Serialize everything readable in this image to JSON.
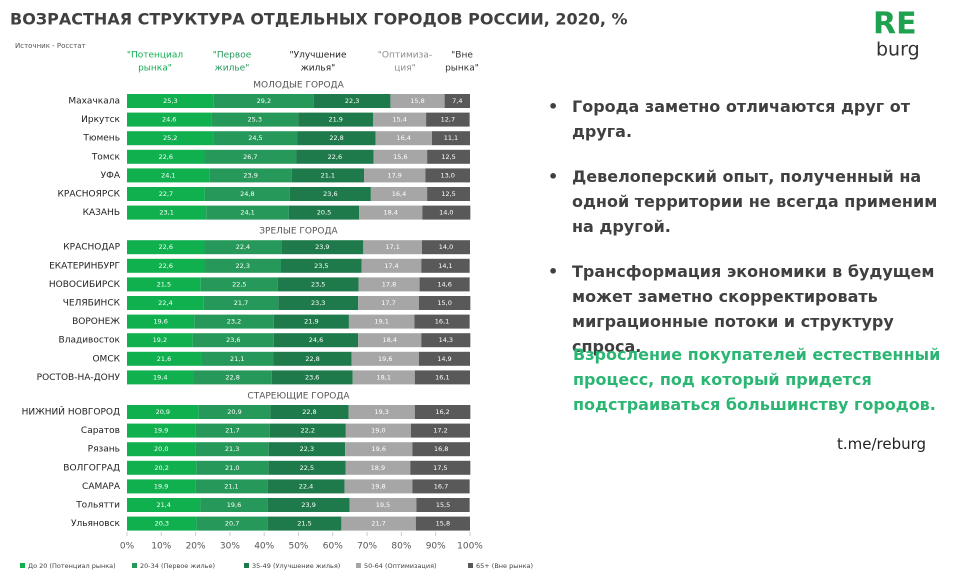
{
  "title": "ВОЗРАСТНАЯ СТРУКТУРА ОТДЕЛЬНЫХ ГОРОДОВ РОССИИ, 2020, %",
  "source": "Источник - Росстат",
  "logo": {
    "top": "RE",
    "bottom": "burg"
  },
  "chart_data": {
    "type": "bar",
    "orientation": "horizontal",
    "stacked": true,
    "series": [
      {
        "name": "До 20 (Потенциал рынка)",
        "color": "#10b04f"
      },
      {
        "name": "20-34 (Первое жилье)",
        "color": "#26995a"
      },
      {
        "name": "35-49 (Улучшение жилья)",
        "color": "#1f7a4b"
      },
      {
        "name": "50-64 (Оптимизация)",
        "color": "#a6a6a6"
      },
      {
        "name": "65+ (Вне рынка)",
        "color": "#595959"
      }
    ],
    "column_headers": [
      {
        "lines": [
          "\"Потенциал",
          "рынка\""
        ],
        "color": "#10b04f"
      },
      {
        "lines": [
          "\"Первое",
          "жилье\""
        ],
        "color": "#26995a"
      },
      {
        "lines": [
          "\"Улучшение",
          "жилья\""
        ],
        "color": "#222222"
      },
      {
        "lines": [
          "\"Оптимиза-",
          "ция\""
        ],
        "color": "#8c8c8c"
      },
      {
        "lines": [
          "\"Вне",
          "рынка\""
        ],
        "color": "#333333"
      }
    ],
    "groups": [
      {
        "label": "МОЛОДЫЕ ГОРОДА",
        "categories": [
          "Махачкала",
          "Иркутск",
          "Тюмень",
          "Томск",
          "УФА",
          "КРАСНОЯРСК",
          "КАЗАНЬ"
        ],
        "series": [
          {
            "values": [
              25.3,
              24.6,
              25.2,
              22.6,
              24.1,
              22.7,
              23.1
            ],
            "value_labels": [
              "25,3",
              "24,6",
              "25,2",
              "22,6",
              "24,1",
              "22,7",
              "23,1"
            ]
          },
          {
            "values": [
              29.2,
              25.3,
              24.5,
              26.7,
              23.9,
              24.8,
              24.1
            ],
            "value_labels": [
              "29,2",
              "25,3",
              "24,5",
              "26,7",
              "23,9",
              "24,8",
              "24,1"
            ]
          },
          {
            "values": [
              22.3,
              21.9,
              22.8,
              22.6,
              21.1,
              23.6,
              20.5
            ],
            "value_labels": [
              "22,3",
              "21,9",
              "22,8",
              "22,6",
              "21,1",
              "23,6",
              "20,5"
            ]
          },
          {
            "values": [
              15.8,
              15.4,
              16.4,
              15.6,
              17.9,
              16.4,
              18.4
            ],
            "value_labels": [
              "15,8",
              "15,4",
              "16,4",
              "15,6",
              "17,9",
              "16,4",
              "18,4"
            ]
          },
          {
            "values": [
              7.4,
              12.7,
              11.1,
              12.5,
              13.0,
              12.5,
              14.0
            ],
            "value_labels": [
              "7,4",
              "12,7",
              "11,1",
              "12,5",
              "13,0",
              "12,5",
              "14,0"
            ]
          }
        ]
      },
      {
        "label": "ЗРЕЛЫЕ ГОРОДА",
        "categories": [
          "КРАСНОДАР",
          "ЕКАТЕРИНБУРГ",
          "НОВОСИБИРСК",
          "ЧЕЛЯБИНСК",
          "ВОРОНЕЖ",
          "Владивосток",
          "ОМСК",
          "РОСТОВ-НА-ДОНУ"
        ],
        "series": [
          {
            "values": [
              22.6,
              22.6,
              21.5,
              22.4,
              19.6,
              19.2,
              21.6,
              19.4
            ],
            "value_labels": [
              "22,6",
              "22,6",
              "21,5",
              "22,4",
              "19,6",
              "19,2",
              "21,6",
              "19,4"
            ]
          },
          {
            "values": [
              22.4,
              22.3,
              22.5,
              21.7,
              23.2,
              23.6,
              21.1,
              22.8
            ],
            "value_labels": [
              "22,4",
              "22,3",
              "22,5",
              "21,7",
              "23,2",
              "23,6",
              "21,1",
              "22,8"
            ]
          },
          {
            "values": [
              23.9,
              23.5,
              23.5,
              23.3,
              21.9,
              24.6,
              22.8,
              23.6
            ],
            "value_labels": [
              "23,9",
              "23,5",
              "23,5",
              "23,3",
              "21,9",
              "24,6",
              "22,8",
              "23,6"
            ]
          },
          {
            "values": [
              17.1,
              17.4,
              17.8,
              17.7,
              19.1,
              18.4,
              19.6,
              18.1
            ],
            "value_labels": [
              "17,1",
              "17,4",
              "17,8",
              "17,7",
              "19,1",
              "18,4",
              "19,6",
              "18,1"
            ]
          },
          {
            "values": [
              14.0,
              14.1,
              14.6,
              15.0,
              16.1,
              14.3,
              14.9,
              16.1
            ],
            "value_labels": [
              "14,0",
              "14,1",
              "14,6",
              "15,0",
              "16,1",
              "14,3",
              "14,9",
              "16,1"
            ]
          }
        ]
      },
      {
        "label": "СТАРЕЮЩИЕ ГОРОДА",
        "categories": [
          "НИЖНИЙ НОВГОРОД",
          "Саратов",
          "Рязань",
          "ВОЛГОГРАД",
          "САМАРА",
          "Тольятти",
          "Ульяновск"
        ],
        "series": [
          {
            "values": [
              20.9,
              19.9,
              20.0,
              20.2,
              19.9,
              21.4,
              20.3
            ],
            "value_labels": [
              "20,9",
              "19,9",
              "20,0",
              "20,2",
              "19,9",
              "21,4",
              "20,3"
            ]
          },
          {
            "values": [
              20.9,
              21.7,
              21.3,
              21.0,
              21.1,
              19.6,
              20.7
            ],
            "value_labels": [
              "20,9",
              "21,7",
              "21,3",
              "21,0",
              "21,1",
              "19,6",
              "20,7"
            ]
          },
          {
            "values": [
              22.8,
              22.2,
              22.3,
              22.5,
              22.4,
              23.9,
              21.5
            ],
            "value_labels": [
              "22,8",
              "22,2",
              "22,3",
              "22,5",
              "22,4",
              "23,9",
              "21,5"
            ]
          },
          {
            "values": [
              19.3,
              19.0,
              19.6,
              18.9,
              19.8,
              19.5,
              21.7
            ],
            "value_labels": [
              "19,3",
              "19,0",
              "19,6",
              "18,9",
              "19,8",
              "19,5",
              "21,7"
            ]
          },
          {
            "values": [
              16.2,
              17.2,
              16.8,
              17.5,
              16.7,
              15.5,
              15.8
            ],
            "value_labels": [
              "16,2",
              "17,2",
              "16,8",
              "17,5",
              "16,7",
              "15,5",
              "15,8"
            ]
          }
        ]
      }
    ],
    "xlim": [
      0,
      100
    ],
    "xticks": [
      {
        "value": 0,
        "label": "0%"
      },
      {
        "value": 10,
        "label": "10%"
      },
      {
        "value": 20,
        "label": "20%"
      },
      {
        "value": 30,
        "label": "30%"
      },
      {
        "value": 40,
        "label": "40%"
      },
      {
        "value": 50,
        "label": "50%"
      },
      {
        "value": 60,
        "label": "60%"
      },
      {
        "value": 70,
        "label": "70%"
      },
      {
        "value": 80,
        "label": "80%"
      },
      {
        "value": 90,
        "label": "90%"
      },
      {
        "value": 100,
        "label": "100%"
      }
    ]
  },
  "bullets": [
    "Города заметно отличаются друг от друга.",
    "Девелоперский опыт, полученный на одной территории не всегда применим на другой.",
    "Трансформация экономики в будущем может заметно скорректировать миграционные потоки и структуру спроса."
  ],
  "highlight": "Взросление покупателей естественный процесс, под который придется подстраиваться большинству городов.",
  "link": "t.me/reburg"
}
